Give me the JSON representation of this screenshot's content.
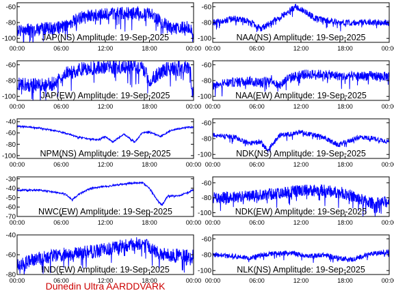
{
  "footer": {
    "text": "Dunedin Ultra AARDDVARK"
  },
  "colors": {
    "trace": "#0000ff",
    "axes": "#000000",
    "footer": "#cc0000",
    "background": "#ffffff"
  },
  "chart_data": [
    {
      "type": "line",
      "title": "JAP(NS) Amplitude: 19-Sep-2025",
      "ylim": [
        -105,
        -55
      ],
      "yticks": [
        "-60",
        "-80",
        "-100"
      ],
      "ytick_values": [
        -60,
        -80,
        -100
      ],
      "xticks": [
        "00:00",
        "06:00",
        "12:00",
        "18:00",
        "00:00"
      ],
      "profile": [
        [
          0,
          -90
        ],
        [
          3,
          -88
        ],
        [
          6,
          -86
        ],
        [
          9,
          -72
        ],
        [
          12,
          -69
        ],
        [
          15,
          -68
        ],
        [
          18,
          -68
        ],
        [
          21,
          -88
        ],
        [
          23.6,
          -85
        ],
        [
          23.8,
          -100
        ],
        [
          24,
          -100
        ]
      ],
      "noise": 8
    },
    {
      "type": "line",
      "title": "NAA(NS) Amplitude: 19-Sep-2025",
      "ylim": [
        -105,
        -55
      ],
      "yticks": [
        "-60",
        "-80",
        "-100"
      ],
      "ytick_values": [
        -60,
        -80,
        -100
      ],
      "xticks": [
        "00:00",
        "06:00",
        "12:00",
        "18:00",
        "00:00"
      ],
      "profile": [
        [
          0,
          -80
        ],
        [
          3,
          -75
        ],
        [
          5,
          -78
        ],
        [
          6.5,
          -88
        ],
        [
          8,
          -80
        ],
        [
          10,
          -68
        ],
        [
          11.3,
          -60
        ],
        [
          12.5,
          -66
        ],
        [
          14,
          -75
        ],
        [
          16,
          -78
        ],
        [
          18,
          -80
        ],
        [
          21,
          -80
        ],
        [
          24,
          -80
        ]
      ],
      "noise": 4
    },
    {
      "type": "line",
      "title": "JAP(EW) Amplitude: 19-Sep-2025",
      "ylim": [
        -105,
        -55
      ],
      "yticks": [
        "-60",
        "-80",
        "-100"
      ],
      "ytick_values": [
        -60,
        -80,
        -100
      ],
      "xticks": [
        "00:00",
        "06:00",
        "12:00",
        "18:00",
        "00:00"
      ],
      "profile": [
        [
          0,
          -85
        ],
        [
          3,
          -86
        ],
        [
          5,
          -84
        ],
        [
          6.5,
          -72
        ],
        [
          9,
          -65
        ],
        [
          12,
          -63
        ],
        [
          15,
          -62
        ],
        [
          17,
          -63
        ],
        [
          18,
          -80
        ],
        [
          20,
          -66
        ],
        [
          23.5,
          -62
        ],
        [
          23.8,
          -95
        ],
        [
          24,
          -98
        ]
      ],
      "noise": 9
    },
    {
      "type": "line",
      "title": "NAA(EW) Amplitude: 19-Sep-2025",
      "ylim": [
        -105,
        -55
      ],
      "yticks": [
        "-60",
        "-80",
        "-100"
      ],
      "ytick_values": [
        -60,
        -80,
        -100
      ],
      "xticks": [
        "00:00",
        "06:00",
        "12:00",
        "18:00",
        "00:00"
      ],
      "profile": [
        [
          0,
          -85
        ],
        [
          3,
          -82
        ],
        [
          5,
          -80
        ],
        [
          6.5,
          -83
        ],
        [
          8,
          -78
        ],
        [
          9,
          -88
        ],
        [
          10,
          -78
        ],
        [
          12,
          -72
        ],
        [
          15,
          -72
        ],
        [
          18,
          -75
        ],
        [
          21,
          -74
        ],
        [
          24,
          -75
        ]
      ],
      "noise": 6
    },
    {
      "type": "line",
      "title": "NPM(NS) Amplitude: 19-Sep-2025",
      "ylim": [
        -105,
        -35
      ],
      "yticks": [
        "-40",
        "-60",
        "-80",
        "-100"
      ],
      "ytick_values": [
        -40,
        -60,
        -80,
        -100
      ],
      "xticks": [
        "00:00",
        "06:00",
        "12:00",
        "18:00",
        "00:00"
      ],
      "profile": [
        [
          0,
          -48
        ],
        [
          3,
          -51
        ],
        [
          6,
          -58
        ],
        [
          8,
          -66
        ],
        [
          9.5,
          -70
        ],
        [
          11,
          -72
        ],
        [
          12,
          -66
        ],
        [
          13,
          -76
        ],
        [
          14.5,
          -62
        ],
        [
          16,
          -76
        ],
        [
          17,
          -60
        ],
        [
          18,
          -58
        ],
        [
          19.5,
          -66
        ],
        [
          21,
          -55
        ],
        [
          23,
          -50
        ],
        [
          24,
          -50
        ]
      ],
      "noise": 1.2
    },
    {
      "type": "line",
      "title": "NDK(NS) Amplitude: 19-Sep-2025",
      "ylim": [
        -105,
        -55
      ],
      "yticks": [
        "-60",
        "-80",
        "-100"
      ],
      "ytick_values": [
        -60,
        -80,
        -100
      ],
      "xticks": [
        "00:00",
        "06:00",
        "12:00",
        "18:00",
        "00:00"
      ],
      "profile": [
        [
          0,
          -76
        ],
        [
          3,
          -78
        ],
        [
          5,
          -86
        ],
        [
          6.5,
          -84
        ],
        [
          7.5,
          -95
        ],
        [
          9,
          -76
        ],
        [
          12,
          -72
        ],
        [
          15,
          -78
        ],
        [
          17,
          -88
        ],
        [
          18.5,
          -83
        ],
        [
          20,
          -78
        ],
        [
          22,
          -80
        ],
        [
          24,
          -84
        ]
      ],
      "noise": 3
    },
    {
      "type": "line",
      "title": "NWC(EW) Amplitude: 19-Sep-2025",
      "ylim": [
        -70,
        -28
      ],
      "yticks": [
        "-30",
        "-40",
        "-50",
        "-60",
        "-70"
      ],
      "ytick_values": [
        -30,
        -40,
        -50,
        -60,
        -70
      ],
      "xticks": [
        "00:00",
        "06:00",
        "12:00",
        "18:00",
        "00:00"
      ],
      "profile": [
        [
          0,
          -42
        ],
        [
          3,
          -42
        ],
        [
          5,
          -44
        ],
        [
          6.5,
          -46
        ],
        [
          7.5,
          -52
        ],
        [
          8.5,
          -46
        ],
        [
          10,
          -40
        ],
        [
          12,
          -38
        ],
        [
          15,
          -35
        ],
        [
          17,
          -34
        ],
        [
          18,
          -40
        ],
        [
          19,
          -52
        ],
        [
          19.7,
          -58
        ],
        [
          20.5,
          -48
        ],
        [
          22,
          -48
        ],
        [
          24,
          -42
        ]
      ],
      "noise": 0.8
    },
    {
      "type": "line",
      "title": "NDK(EW) Amplitude: 19-Sep-2025",
      "ylim": [
        -105,
        -52
      ],
      "yticks": [
        "-60",
        "-80",
        "-100"
      ],
      "ytick_values": [
        -60,
        -80,
        -100
      ],
      "xticks": [
        "00:00",
        "06:00",
        "12:00",
        "18:00",
        "00:00"
      ],
      "profile": [
        [
          0,
          -80
        ],
        [
          3,
          -79
        ],
        [
          6,
          -77
        ],
        [
          9,
          -74
        ],
        [
          12,
          -70
        ],
        [
          15,
          -70
        ],
        [
          18,
          -74
        ],
        [
          20,
          -82
        ],
        [
          22,
          -88
        ],
        [
          24,
          -85
        ]
      ],
      "noise": 8
    },
    {
      "type": "line",
      "title": "IND(EW) Amplitude: 19-Sep-2025",
      "ylim": [
        -80,
        -40
      ],
      "yticks": [
        "-40",
        "-60",
        "-80"
      ],
      "ytick_values": [
        -40,
        -60,
        -80
      ],
      "xticks": [
        "00:00",
        "06:00",
        "12:00",
        "18:00",
        "00:00"
      ],
      "profile": [
        [
          0,
          -70
        ],
        [
          3,
          -64
        ],
        [
          6,
          -60
        ],
        [
          9,
          -58
        ],
        [
          12,
          -55
        ],
        [
          15,
          -50
        ],
        [
          17,
          -48
        ],
        [
          18.5,
          -55
        ],
        [
          20,
          -60
        ],
        [
          24,
          -62
        ]
      ],
      "noise": 7
    },
    {
      "type": "line",
      "title": "NLK(NS) Amplitude: 19-Sep-2025",
      "ylim": [
        -105,
        -55
      ],
      "yticks": [
        "-60",
        "-80",
        "-100"
      ],
      "ytick_values": [
        -60,
        -80,
        -100
      ],
      "xticks": [
        "00:00",
        "06:00",
        "12:00",
        "18:00",
        "00:00"
      ],
      "profile": [
        [
          0,
          -80
        ],
        [
          3,
          -82
        ],
        [
          5,
          -84
        ],
        [
          7,
          -80
        ],
        [
          9,
          -78
        ],
        [
          11,
          -78
        ],
        [
          13,
          -82
        ],
        [
          15,
          -80
        ],
        [
          17,
          -84
        ],
        [
          19,
          -86
        ],
        [
          21,
          -80
        ],
        [
          24,
          -76
        ]
      ],
      "noise": 3
    }
  ]
}
